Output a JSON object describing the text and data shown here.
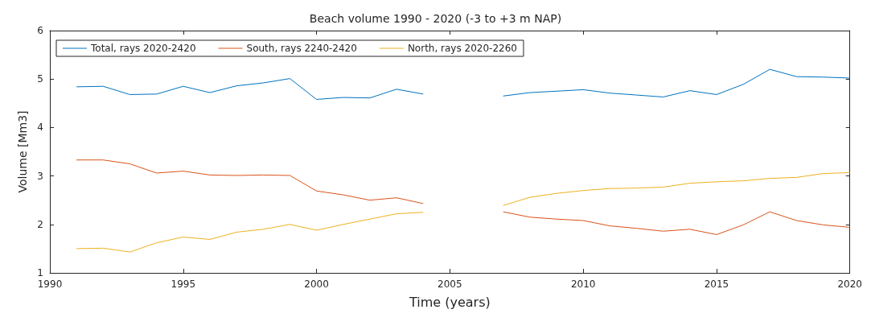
{
  "chart_data": {
    "type": "line",
    "title": "Beach volume 1990 - 2020 (-3 to +3 m NAP)",
    "xlabel": "Time (years)",
    "ylabel": "Volume [Mm3]",
    "x": [
      1991,
      1992,
      1993,
      1994,
      1995,
      1996,
      1997,
      1998,
      1999,
      2000,
      2001,
      2002,
      2003,
      2004,
      2005,
      2006,
      2007,
      2008,
      2009,
      2010,
      2011,
      2012,
      2013,
      2014,
      2015,
      2016,
      2017,
      2018,
      2019,
      2020
    ],
    "series": [
      {
        "name": "Total, rays 2020-2420",
        "color": "#0072bd",
        "values": [
          4.84,
          4.85,
          4.68,
          4.69,
          4.85,
          4.72,
          4.86,
          4.92,
          5.01,
          4.58,
          4.62,
          4.61,
          4.79,
          4.69,
          null,
          null,
          4.65,
          4.72,
          4.75,
          4.78,
          4.71,
          4.67,
          4.63,
          4.76,
          4.68,
          4.89,
          5.2,
          5.05,
          5.04,
          5.02
        ]
      },
      {
        "name": "South, rays 2240-2420",
        "color": "#d95319",
        "values": [
          3.33,
          3.33,
          3.25,
          3.06,
          3.1,
          3.02,
          3.01,
          3.02,
          3.01,
          2.69,
          2.61,
          2.5,
          2.55,
          2.43,
          null,
          null,
          2.26,
          2.15,
          2.11,
          2.08,
          1.97,
          1.92,
          1.86,
          1.9,
          1.79,
          1.99,
          2.26,
          2.08,
          1.99,
          1.94
        ]
      },
      {
        "name": "North, rays 2020-2260",
        "color": "#edb120",
        "values": [
          1.5,
          1.51,
          1.43,
          1.62,
          1.74,
          1.69,
          1.84,
          1.9,
          2.0,
          1.88,
          2.0,
          2.11,
          2.22,
          2.25,
          null,
          null,
          2.39,
          2.56,
          2.64,
          2.7,
          2.74,
          2.75,
          2.77,
          2.85,
          2.88,
          2.9,
          2.95,
          2.97,
          3.05,
          3.07
        ]
      }
    ],
    "xlim": [
      1990,
      2020
    ],
    "xticks": [
      1990,
      1995,
      2000,
      2005,
      2010,
      2015,
      2020
    ],
    "ylim": [
      1,
      6
    ],
    "yticks": [
      1,
      2,
      3,
      4,
      5,
      6
    ],
    "grid": false,
    "legend": "top left",
    "marker": "none",
    "line_style": "solid"
  }
}
